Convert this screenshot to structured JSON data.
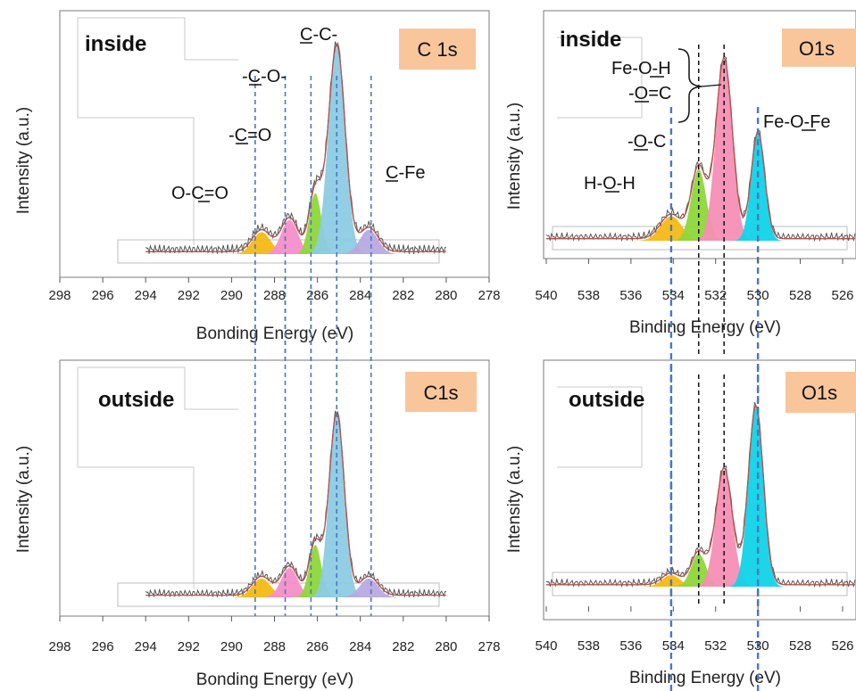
{
  "chart_data": [
    {
      "type": "area",
      "panel": "top-left",
      "region_label": "inside",
      "badge": "C 1s",
      "xlabel": "Bonding Energy (eV)",
      "ylabel": "Intensity (a.u.)",
      "xlim": [
        298,
        278
      ],
      "xticks": [
        "298",
        "296",
        "294",
        "292",
        "290",
        "288",
        "286",
        "284",
        "282",
        "280",
        "278"
      ],
      "peak_labels": [
        "O-C=O",
        "-C=O",
        "-C-O-",
        "C-C-",
        "C-Fe"
      ],
      "components": [
        {
          "center": 288.6,
          "height": 0.09,
          "width": 0.6,
          "color": "#f5b915"
        },
        {
          "center": 287.3,
          "height": 0.14,
          "width": 0.55,
          "color": "#f58fc8"
        },
        {
          "center": 286.1,
          "height": 0.25,
          "width": 0.4,
          "color": "#8ed63a"
        },
        {
          "center": 285.1,
          "height": 0.85,
          "width": 0.55,
          "color": "#8ccbe3"
        },
        {
          "center": 283.6,
          "height": 0.1,
          "width": 0.6,
          "color": "#b8a9e0"
        }
      ],
      "dashed_lines": [
        288.9,
        287.5,
        286.3,
        285.1,
        283.5
      ],
      "dashed_color": "#4a78c0"
    },
    {
      "type": "area",
      "panel": "top-right",
      "region_label": "inside",
      "badge": "O1s",
      "xlabel": "Binding Energy (eV)",
      "ylabel": "Intensity (a.u.)",
      "xlim": [
        540,
        524
      ],
      "xticks": [
        "540",
        "538",
        "536",
        "534",
        "532",
        "530",
        "528",
        "526"
      ],
      "peak_labels": [
        "H-O-H",
        "-O-C",
        "Fe-O-H",
        "-O=C",
        "Fe-O-Fe"
      ],
      "components": [
        {
          "center": 534.1,
          "height": 0.12,
          "width": 0.7,
          "color": "#f5b915"
        },
        {
          "center": 532.8,
          "height": 0.35,
          "width": 0.5,
          "color": "#8ed63a"
        },
        {
          "center": 531.6,
          "height": 0.88,
          "width": 0.55,
          "color": "#f58fb5"
        },
        {
          "center": 530.0,
          "height": 0.52,
          "width": 0.45,
          "color": "#10d3e8"
        }
      ],
      "dashed_lines": [
        534.1,
        530.0
      ],
      "dashed_color": "#4a78c0",
      "black_lines": [
        532.8,
        531.6
      ]
    },
    {
      "type": "area",
      "panel": "bottom-left",
      "region_label": "outside",
      "badge": "C1s",
      "xlabel": "Bonding Energy (eV)",
      "ylabel": "Intensity (a.u.)",
      "xlim": [
        298,
        278
      ],
      "xticks": [
        "298",
        "296",
        "294",
        "292",
        "290",
        "288",
        "286",
        "284",
        "282",
        "280",
        "278"
      ],
      "components": [
        {
          "center": 288.6,
          "height": 0.09,
          "width": 0.6,
          "color": "#f5b915"
        },
        {
          "center": 287.3,
          "height": 0.14,
          "width": 0.55,
          "color": "#f58fc8"
        },
        {
          "center": 286.1,
          "height": 0.25,
          "width": 0.4,
          "color": "#8ed63a"
        },
        {
          "center": 285.1,
          "height": 0.87,
          "width": 0.5,
          "color": "#8ccbe3"
        },
        {
          "center": 283.6,
          "height": 0.09,
          "width": 0.6,
          "color": "#b8a9e0"
        }
      ],
      "dashed_lines": [
        288.9,
        287.5,
        286.3,
        285.1,
        283.5
      ],
      "dashed_color": "#4a78c0"
    },
    {
      "type": "area",
      "panel": "bottom-right",
      "region_label": "outside",
      "badge": "O1s",
      "xlabel": "Binding Energy (eV)",
      "ylabel": "Intensity (a.u.)",
      "xlim": [
        540,
        524
      ],
      "xticks": [
        "540",
        "538",
        "536",
        "534",
        "532",
        "530",
        "528",
        "526"
      ],
      "components": [
        {
          "center": 534.1,
          "height": 0.06,
          "width": 0.6,
          "color": "#f5b915"
        },
        {
          "center": 532.8,
          "height": 0.17,
          "width": 0.5,
          "color": "#8ed63a"
        },
        {
          "center": 531.6,
          "height": 0.6,
          "width": 0.55,
          "color": "#f58fb5"
        },
        {
          "center": 530.1,
          "height": 0.92,
          "width": 0.5,
          "color": "#10d3e8"
        }
      ],
      "dashed_lines": [
        534.1,
        530.0
      ],
      "dashed_color": "#4a78c0",
      "black_lines": [
        532.8,
        531.6
      ]
    }
  ]
}
